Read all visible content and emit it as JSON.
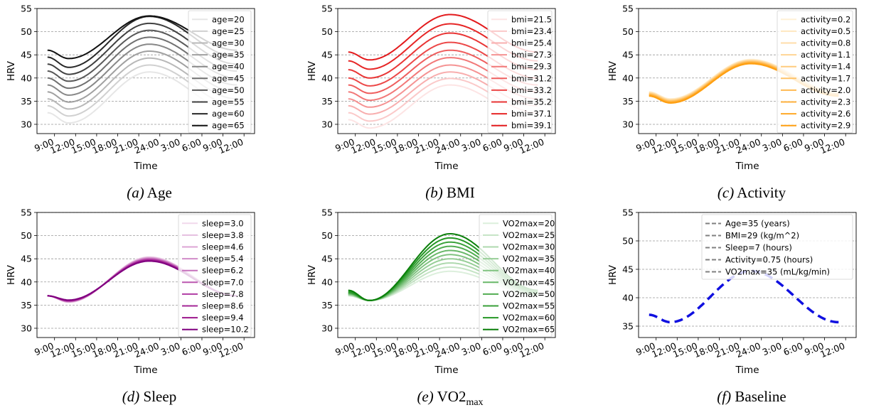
{
  "chart_data": [
    {
      "type": "line",
      "caption_letter": "(a)",
      "caption_text": " Age",
      "xlabel": "Time",
      "ylabel": "HRV",
      "ylim": [
        28,
        55
      ],
      "yticks": [
        30,
        35,
        40,
        45,
        50,
        55
      ],
      "xticks": [
        "9:00",
        "12:00",
        "15:00",
        "18:00",
        "21:00",
        "24:00",
        "3:00",
        "6:00",
        "9:00",
        "12:00"
      ],
      "xticks_hours": [
        9,
        12,
        15,
        18,
        21,
        24,
        27,
        30,
        33,
        36
      ],
      "xlim_hours": [
        6.5,
        37.5
      ],
      "x_hours_range": [
        8,
        35
      ],
      "grid": "horizontal-dashed",
      "legend": "top-right",
      "colors": [
        "#e6e6e6",
        "#d0d0d0",
        "#b8b8b8",
        "#a0a0a0",
        "#888888",
        "#707070",
        "#585858",
        "#404040",
        "#282828",
        "#111111"
      ],
      "series": [
        {
          "name": "age=20",
          "start": 32.5,
          "min": 30.3,
          "max": 41.3,
          "end": 32.5
        },
        {
          "name": "age=25",
          "start": 34.0,
          "min": 31.8,
          "max": 42.8,
          "end": 34.0
        },
        {
          "name": "age=30",
          "start": 35.5,
          "min": 33.3,
          "max": 44.3,
          "end": 35.5
        },
        {
          "name": "age=35",
          "start": 37.0,
          "min": 34.8,
          "max": 45.8,
          "end": 37.0
        },
        {
          "name": "age=40",
          "start": 38.5,
          "min": 36.3,
          "max": 47.3,
          "end": 38.5
        },
        {
          "name": "age=45",
          "start": 40.0,
          "min": 37.8,
          "max": 48.8,
          "end": 40.0
        },
        {
          "name": "age=50",
          "start": 41.5,
          "min": 39.3,
          "max": 50.3,
          "end": 41.5
        },
        {
          "name": "age=55",
          "start": 43.0,
          "min": 40.8,
          "max": 51.8,
          "end": 43.0
        },
        {
          "name": "age=60",
          "start": 44.5,
          "min": 42.3,
          "max": 53.3,
          "end": 44.5
        },
        {
          "name": "age=65",
          "start": 46.0,
          "min": 44.2,
          "max": 53.4,
          "end": 46.0
        }
      ]
    },
    {
      "type": "line",
      "caption_letter": "(b)",
      "caption_text": " BMI",
      "xlabel": "Time",
      "ylabel": "HRV",
      "ylim": [
        28,
        55
      ],
      "yticks": [
        30,
        35,
        40,
        45,
        50,
        55
      ],
      "xticks": [
        "9:00",
        "12:00",
        "15:00",
        "18:00",
        "21:00",
        "24:00",
        "3:00",
        "6:00",
        "9:00",
        "12:00"
      ],
      "xticks_hours": [
        9,
        12,
        15,
        18,
        21,
        24,
        27,
        30,
        33,
        36
      ],
      "xlim_hours": [
        6.5,
        37.5
      ],
      "x_hours_range": [
        8,
        35
      ],
      "grid": "horizontal-dashed",
      "legend": "top-right",
      "colors": [
        "#fde4e4",
        "#fbc9c9",
        "#f8aeae",
        "#f59393",
        "#f27878",
        "#ef5e5e",
        "#ec4848",
        "#e93535",
        "#e62626",
        "#e31a1c"
      ],
      "series": [
        {
          "name": "bmi=21.5",
          "start": 31.0,
          "min": 29.2,
          "max": 38.5,
          "end": 31.0
        },
        {
          "name": "bmi=23.4",
          "start": 32.5,
          "min": 30.7,
          "max": 39.9,
          "end": 32.5
        },
        {
          "name": "bmi=25.4",
          "start": 34.0,
          "min": 32.2,
          "max": 41.3,
          "end": 34.0
        },
        {
          "name": "bmi=27.3",
          "start": 35.5,
          "min": 33.7,
          "max": 42.8,
          "end": 35.5
        },
        {
          "name": "bmi=29.3",
          "start": 37.0,
          "min": 35.2,
          "max": 44.4,
          "end": 37.0
        },
        {
          "name": "bmi=31.2",
          "start": 38.5,
          "min": 36.7,
          "max": 46.0,
          "end": 38.5
        },
        {
          "name": "bmi=33.2",
          "start": 40.0,
          "min": 38.3,
          "max": 47.7,
          "end": 40.0
        },
        {
          "name": "bmi=35.2",
          "start": 41.8,
          "min": 40.0,
          "max": 49.7,
          "end": 41.8
        },
        {
          "name": "bmi=37.1",
          "start": 43.7,
          "min": 41.9,
          "max": 51.7,
          "end": 43.7
        },
        {
          "name": "bmi=39.1",
          "start": 45.6,
          "min": 43.9,
          "max": 53.7,
          "end": 45.6
        }
      ]
    },
    {
      "type": "line",
      "caption_letter": "(c)",
      "caption_text": " Activity",
      "xlabel": "Time",
      "ylabel": "HRV",
      "ylim": [
        28,
        55
      ],
      "yticks": [
        30,
        35,
        40,
        45,
        50,
        55
      ],
      "xticks": [
        "9:00",
        "12:00",
        "15:00",
        "18:00",
        "21:00",
        "24:00",
        "3:00",
        "6:00",
        "9:00",
        "12:00"
      ],
      "xticks_hours": [
        9,
        12,
        15,
        18,
        21,
        24,
        27,
        30,
        33,
        36
      ],
      "xlim_hours": [
        6.5,
        37.5
      ],
      "x_hours_range": [
        8,
        35
      ],
      "grid": "horizontal-dashed",
      "legend": "top-right",
      "colors": [
        "#fff1d6",
        "#ffe8c0",
        "#ffdeaa",
        "#ffd594",
        "#ffcc7e",
        "#ffc368",
        "#ffba52",
        "#ffb13c",
        "#ffa826",
        "#ff9f10"
      ],
      "series": [
        {
          "name": "activity=0.2",
          "start": 37.0,
          "min": 35.5,
          "max": 44.0,
          "end": 37.0
        },
        {
          "name": "activity=0.5",
          "start": 36.9,
          "min": 35.4,
          "max": 43.9,
          "end": 36.9
        },
        {
          "name": "activity=0.8",
          "start": 36.8,
          "min": 35.3,
          "max": 43.8,
          "end": 36.8
        },
        {
          "name": "activity=1.1",
          "start": 36.7,
          "min": 35.2,
          "max": 43.7,
          "end": 36.7
        },
        {
          "name": "activity=1.4",
          "start": 36.6,
          "min": 35.1,
          "max": 43.6,
          "end": 36.6
        },
        {
          "name": "activity=1.7",
          "start": 36.5,
          "min": 35.0,
          "max": 43.5,
          "end": 36.5
        },
        {
          "name": "activity=2.0",
          "start": 36.4,
          "min": 34.9,
          "max": 43.4,
          "end": 36.4
        },
        {
          "name": "activity=2.3",
          "start": 36.3,
          "min": 34.8,
          "max": 43.3,
          "end": 36.3
        },
        {
          "name": "activity=2.6",
          "start": 36.2,
          "min": 34.7,
          "max": 43.2,
          "end": 36.2
        },
        {
          "name": "activity=2.9",
          "start": 36.1,
          "min": 34.6,
          "max": 43.1,
          "end": 36.1
        }
      ]
    },
    {
      "type": "line",
      "caption_letter": "(d)",
      "caption_text": " Sleep",
      "xlabel": "Time",
      "ylabel": "HRV",
      "ylim": [
        28,
        55
      ],
      "yticks": [
        30,
        35,
        40,
        45,
        50,
        55
      ],
      "xticks": [
        "9:00",
        "12:00",
        "15:00",
        "18:00",
        "21:00",
        "24:00",
        "3:00",
        "6:00",
        "9:00",
        "12:00"
      ],
      "xticks_hours": [
        9,
        12,
        15,
        18,
        21,
        24,
        27,
        30,
        33,
        36
      ],
      "xlim_hours": [
        6.5,
        37.5
      ],
      "x_hours_range": [
        8,
        35
      ],
      "grid": "horizontal-dashed",
      "legend": "top-right",
      "colors": [
        "#f1d9ec",
        "#e6bfe0",
        "#dca5d4",
        "#d18bc8",
        "#c671bc",
        "#bb57b0",
        "#b13da4",
        "#a62898",
        "#9b168c",
        "#800080"
      ],
      "series": [
        {
          "name": "sleep=3.0",
          "start": 37.0,
          "min": 35.6,
          "max": 45.4,
          "end": 37.0
        },
        {
          "name": "sleep=3.8",
          "start": 37.0,
          "min": 35.7,
          "max": 45.3,
          "end": 37.0
        },
        {
          "name": "sleep=4.6",
          "start": 37.0,
          "min": 35.7,
          "max": 45.2,
          "end": 37.0
        },
        {
          "name": "sleep=5.4",
          "start": 37.0,
          "min": 35.8,
          "max": 45.1,
          "end": 37.0
        },
        {
          "name": "sleep=6.2",
          "start": 37.0,
          "min": 35.8,
          "max": 45.0,
          "end": 37.0
        },
        {
          "name": "sleep=7.0",
          "start": 37.0,
          "min": 35.9,
          "max": 44.9,
          "end": 37.0
        },
        {
          "name": "sleep=7.8",
          "start": 37.0,
          "min": 35.9,
          "max": 44.8,
          "end": 37.0
        },
        {
          "name": "sleep=8.6",
          "start": 37.0,
          "min": 36.0,
          "max": 44.7,
          "end": 37.0
        },
        {
          "name": "sleep=9.4",
          "start": 37.0,
          "min": 36.0,
          "max": 44.6,
          "end": 37.0
        },
        {
          "name": "sleep=10.2",
          "start": 37.0,
          "min": 36.1,
          "max": 44.5,
          "end": 37.0
        }
      ]
    },
    {
      "type": "line",
      "caption_letter": "(e)",
      "caption_text": " VO2",
      "caption_sub": "max",
      "xlabel": "Time",
      "ylabel": "HRV",
      "ylim": [
        28,
        55
      ],
      "yticks": [
        30,
        35,
        40,
        45,
        50,
        55
      ],
      "xticks": [
        "9:00",
        "12:00",
        "15:00",
        "18:00",
        "21:00",
        "24:00",
        "3:00",
        "6:00",
        "9:00",
        "12:00"
      ],
      "xticks_hours": [
        9,
        12,
        15,
        18,
        21,
        24,
        27,
        30,
        33,
        36
      ],
      "xlim_hours": [
        6.5,
        37.5
      ],
      "x_hours_range": [
        8,
        35
      ],
      "grid": "horizontal-dashed",
      "legend": "top-right",
      "colors": [
        "#dcefdc",
        "#c5e4c5",
        "#aed9ae",
        "#97ce97",
        "#80c380",
        "#69b869",
        "#52ad52",
        "#3ba23b",
        "#249724",
        "#0a7f0a"
      ],
      "series": [
        {
          "name": "VO2max=20",
          "start": 37.0,
          "min": 36.0,
          "max": 42.3,
          "end": 37.0
        },
        {
          "name": "VO2max=25",
          "start": 37.1,
          "min": 36.0,
          "max": 43.2,
          "end": 37.1
        },
        {
          "name": "VO2max=30",
          "start": 37.2,
          "min": 36.0,
          "max": 44.1,
          "end": 37.2
        },
        {
          "name": "VO2max=35",
          "start": 37.3,
          "min": 36.0,
          "max": 45.0,
          "end": 37.3
        },
        {
          "name": "VO2max=40",
          "start": 37.4,
          "min": 36.0,
          "max": 45.9,
          "end": 37.4
        },
        {
          "name": "VO2max=45",
          "start": 37.5,
          "min": 36.0,
          "max": 46.8,
          "end": 37.5
        },
        {
          "name": "VO2max=50",
          "start": 37.6,
          "min": 36.0,
          "max": 47.7,
          "end": 37.6
        },
        {
          "name": "VO2max=55",
          "start": 37.7,
          "min": 36.0,
          "max": 48.6,
          "end": 37.7
        },
        {
          "name": "VO2max=60",
          "start": 37.9,
          "min": 36.0,
          "max": 49.5,
          "end": 37.9
        },
        {
          "name": "VO2max=65",
          "start": 38.2,
          "min": 36.0,
          "max": 50.4,
          "end": 38.2
        }
      ]
    },
    {
      "type": "line",
      "caption_letter": "(f)",
      "caption_text": " Baseline",
      "xlabel": "Time",
      "ylabel": "HRV",
      "ylim": [
        33,
        55
      ],
      "yticks": [
        35,
        40,
        45,
        50,
        55
      ],
      "xticks": [
        "9:00",
        "12:00",
        "15:00",
        "18:00",
        "21:00",
        "24:00",
        "3:00",
        "6:00",
        "9:00",
        "12:00"
      ],
      "xticks_hours": [
        9,
        12,
        15,
        18,
        21,
        24,
        27,
        30,
        33,
        36
      ],
      "xlim_hours": [
        6.5,
        37.5
      ],
      "x_hours_range": [
        8,
        35
      ],
      "grid": "horizontal-dashed",
      "legend": "top-right",
      "legend_line_color": "#808080",
      "legend_entries": [
        "Age=35 (years)",
        "BMI=29 (kg/m^2)",
        "Sleep=7 (hours)",
        "Activity=0.75 (hours)",
        "VO2max=35 (mL/kg/min)"
      ],
      "colors": [
        "#1010e0"
      ],
      "series": [
        {
          "start": 37.0,
          "min": 35.7,
          "max": 44.7,
          "end": 35.7
        }
      ]
    }
  ]
}
